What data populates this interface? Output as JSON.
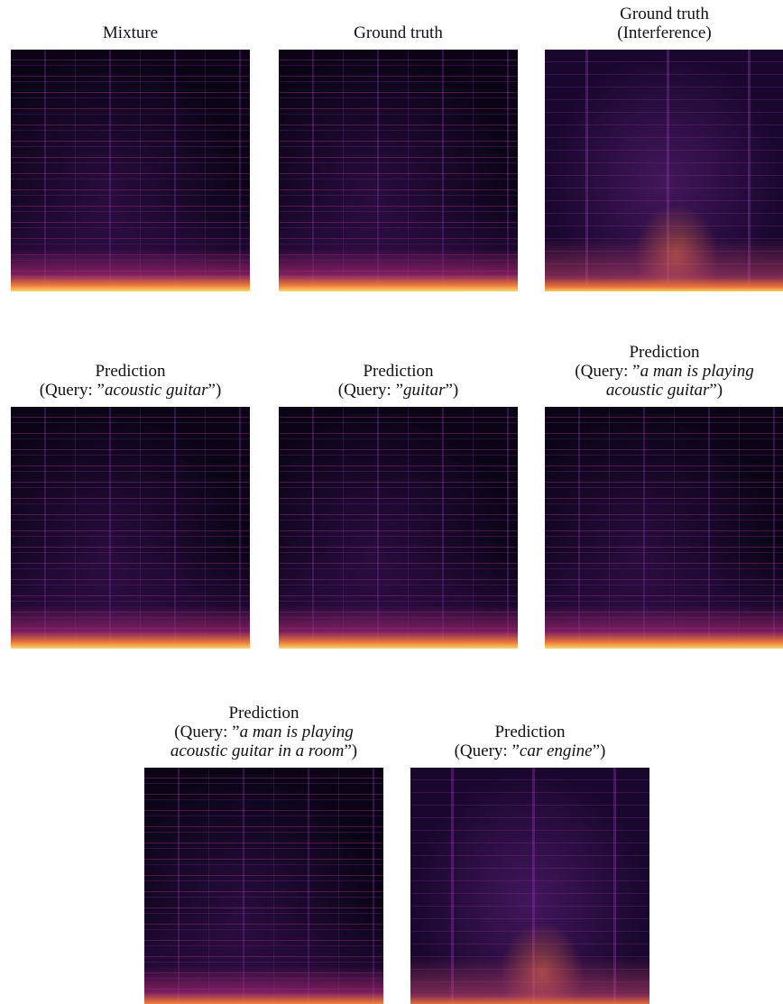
{
  "panels": [
    {
      "title": [
        [
          {
            "text": "Mixture"
          }
        ]
      ]
    },
    {
      "title": [
        [
          {
            "text": "Ground truth"
          }
        ]
      ]
    },
    {
      "title": [
        [
          {
            "text": "Ground truth"
          }
        ],
        [
          {
            "text": "(Interference)"
          }
        ]
      ]
    },
    {
      "title": [
        [
          {
            "text": "Prediction"
          }
        ],
        [
          {
            "text": "(Query: ”"
          },
          {
            "text": "acoustic guitar",
            "italic": true
          },
          {
            "text": "”)"
          }
        ]
      ]
    },
    {
      "title": [
        [
          {
            "text": "Prediction"
          }
        ],
        [
          {
            "text": "(Query: ”"
          },
          {
            "text": "guitar",
            "italic": true
          },
          {
            "text": "”)"
          }
        ]
      ]
    },
    {
      "title": [
        [
          {
            "text": "Prediction"
          }
        ],
        [
          {
            "text": "(Query: ”"
          },
          {
            "text": "a man is playing",
            "italic": true
          }
        ],
        [
          {
            "text": "acoustic guitar",
            "italic": true
          },
          {
            "text": "”)"
          }
        ]
      ]
    },
    {
      "title": [
        [
          {
            "text": "Prediction"
          }
        ],
        [
          {
            "text": "(Query: ”"
          },
          {
            "text": "a man is playing",
            "italic": true
          }
        ],
        [
          {
            "text": "acoustic guitar in a room",
            "italic": true
          },
          {
            "text": "”)"
          }
        ]
      ]
    },
    {
      "title": [
        [
          {
            "text": "Prediction"
          }
        ],
        [
          {
            "text": "(Query: ”"
          },
          {
            "text": "car engine",
            "italic": true
          },
          {
            "text": "”)"
          }
        ]
      ]
    }
  ]
}
